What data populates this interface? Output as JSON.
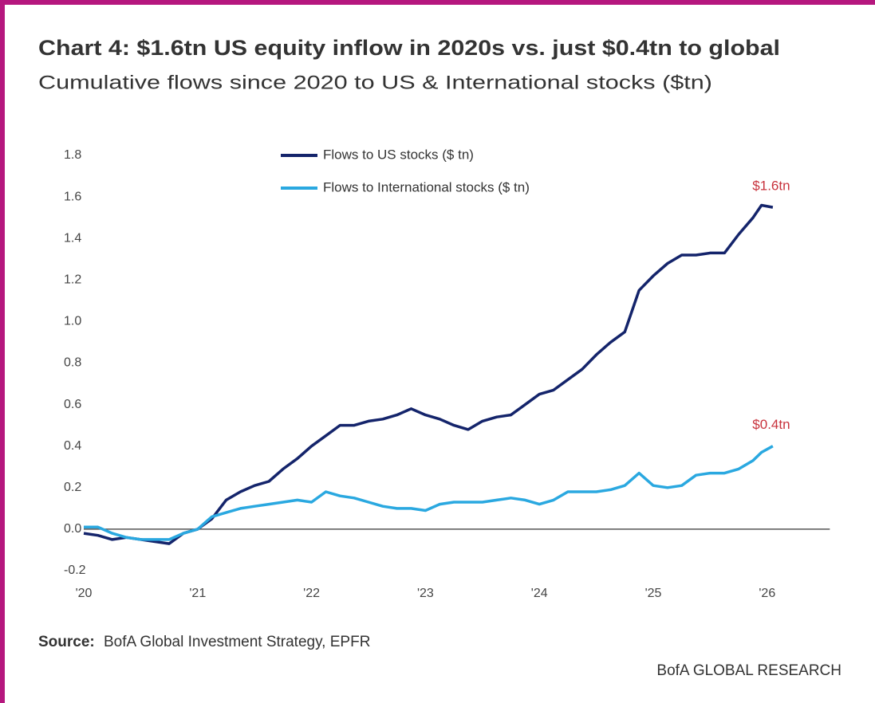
{
  "chart_data": {
    "type": "line",
    "title": "Chart 4: $1.6tn US equity inflow in 2020s vs. just $0.4tn to global",
    "subtitle": "Cumulative flows since 2020 to US & International stocks ($tn)",
    "source_label": "Source:",
    "source": "BofA Global Investment Strategy, EPFR",
    "footer": "BofA GLOBAL RESEARCH",
    "x": [
      2020.0,
      2020.125,
      2020.25,
      2020.375,
      2020.5,
      2020.625,
      2020.75,
      2020.875,
      2021.0,
      2021.125,
      2021.25,
      2021.375,
      2021.5,
      2021.625,
      2021.75,
      2021.875,
      2022.0,
      2022.125,
      2022.25,
      2022.375,
      2022.5,
      2022.625,
      2022.75,
      2022.875,
      2023.0,
      2023.125,
      2023.25,
      2023.375,
      2023.5,
      2023.625,
      2023.75,
      2023.875,
      2024.0,
      2024.125,
      2024.25,
      2024.375,
      2024.5,
      2024.625,
      2024.75,
      2024.875,
      2025.0,
      2025.125,
      2025.25,
      2025.375,
      2025.5,
      2025.625,
      2025.75,
      2025.875,
      2025.95,
      2026.05
    ],
    "series": [
      {
        "name": "Flows to US stocks ($ tn)",
        "color": "#14246b",
        "annotation": "$1.6tn",
        "values": [
          -0.02,
          -0.03,
          -0.05,
          -0.04,
          -0.05,
          -0.06,
          -0.07,
          -0.02,
          0.0,
          0.05,
          0.14,
          0.18,
          0.21,
          0.23,
          0.29,
          0.34,
          0.4,
          0.45,
          0.5,
          0.5,
          0.52,
          0.53,
          0.55,
          0.58,
          0.55,
          0.53,
          0.5,
          0.48,
          0.52,
          0.54,
          0.55,
          0.6,
          0.65,
          0.67,
          0.72,
          0.77,
          0.84,
          0.9,
          0.95,
          1.15,
          1.22,
          1.28,
          1.32,
          1.32,
          1.33,
          1.33,
          1.42,
          1.5,
          1.56,
          1.55
        ]
      },
      {
        "name": "Flows to International stocks ($ tn)",
        "color": "#2aa8e0",
        "annotation": "$0.4tn",
        "values": [
          0.01,
          0.01,
          -0.02,
          -0.04,
          -0.05,
          -0.05,
          -0.05,
          -0.02,
          0.0,
          0.06,
          0.08,
          0.1,
          0.11,
          0.12,
          0.13,
          0.14,
          0.13,
          0.18,
          0.16,
          0.15,
          0.13,
          0.11,
          0.1,
          0.1,
          0.09,
          0.12,
          0.13,
          0.13,
          0.13,
          0.14,
          0.15,
          0.14,
          0.12,
          0.14,
          0.18,
          0.18,
          0.18,
          0.19,
          0.21,
          0.27,
          0.21,
          0.2,
          0.21,
          0.26,
          0.27,
          0.27,
          0.29,
          0.33,
          0.37,
          0.4
        ]
      }
    ],
    "annotation_color": "#c8323c",
    "xlim": [
      2020,
      2026.55
    ],
    "xticks": [
      {
        "value": 2020,
        "label": "'20"
      },
      {
        "value": 2021,
        "label": "'21"
      },
      {
        "value": 2022,
        "label": "'22"
      },
      {
        "value": 2023,
        "label": "'23"
      },
      {
        "value": 2024,
        "label": "'24"
      },
      {
        "value": 2025,
        "label": "'25"
      },
      {
        "value": 2026,
        "label": "'26"
      }
    ],
    "ylim": [
      -0.2,
      1.8
    ],
    "yticks": [
      {
        "value": -0.2,
        "label": "-0.2"
      },
      {
        "value": 0,
        "label": "0.0"
      },
      {
        "value": 0.2,
        "label": "0.2"
      },
      {
        "value": 0.4,
        "label": "0.4"
      },
      {
        "value": 0.6,
        "label": "0.6"
      },
      {
        "value": 0.8,
        "label": "0.8"
      },
      {
        "value": 1.0,
        "label": "1.0"
      },
      {
        "value": 1.2,
        "label": "1.2"
      },
      {
        "value": 1.4,
        "label": "1.4"
      },
      {
        "value": 1.6,
        "label": "1.6"
      },
      {
        "value": 1.8,
        "label": "1.8"
      }
    ],
    "grid": false
  }
}
